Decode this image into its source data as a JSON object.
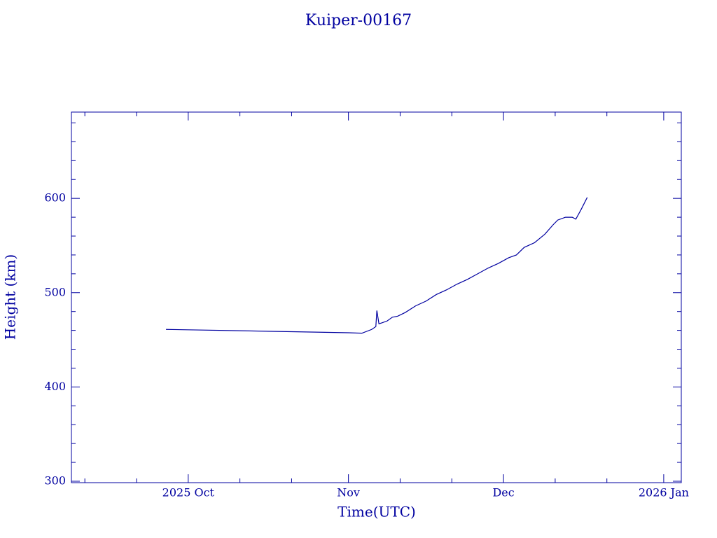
{
  "chart_data": {
    "type": "line",
    "title": "Kuiper-00167",
    "x_label": "Time(UTC)",
    "y_label": "Height (km)",
    "x": [
      269.7,
      275,
      285,
      295,
      305,
      307.6,
      309.5,
      310.3,
      310.5,
      310.9,
      311.5,
      312.5,
      313.5,
      314.5,
      316,
      318,
      320,
      322,
      324,
      326,
      328,
      330,
      332,
      334,
      336,
      337.5,
      339,
      341,
      343,
      344.6,
      345.5,
      347,
      348.3,
      349,
      350,
      351.2
    ],
    "values": [
      461,
      460.5,
      459.5,
      458.5,
      457.5,
      457,
      461,
      464,
      481,
      467,
      468,
      470,
      474,
      475,
      479,
      486,
      491,
      498,
      503,
      509,
      514,
      520,
      526,
      531,
      537,
      540,
      548,
      553,
      562,
      572,
      577,
      580,
      580,
      578,
      588,
      601
    ],
    "color": "#0000a0",
    "xlim": [
      251.4,
      369.4
    ],
    "xticks": [
      {
        "value": 274,
        "label": "2025 Oct"
      },
      {
        "value": 305,
        "label": "Nov"
      },
      {
        "value": 335,
        "label": "Dec"
      },
      {
        "value": 366,
        "label": "2026 Jan"
      }
    ],
    "xticks_minor": [
      254,
      264,
      284,
      294,
      315,
      325,
      345,
      355
    ],
    "ylim": [
      298.5,
      691.5
    ],
    "yticks": [
      300,
      400,
      500,
      600
    ],
    "yticks_minor": [
      320,
      340,
      360,
      380,
      420,
      440,
      460,
      480,
      520,
      540,
      560,
      580,
      620,
      640,
      660,
      680
    ]
  }
}
